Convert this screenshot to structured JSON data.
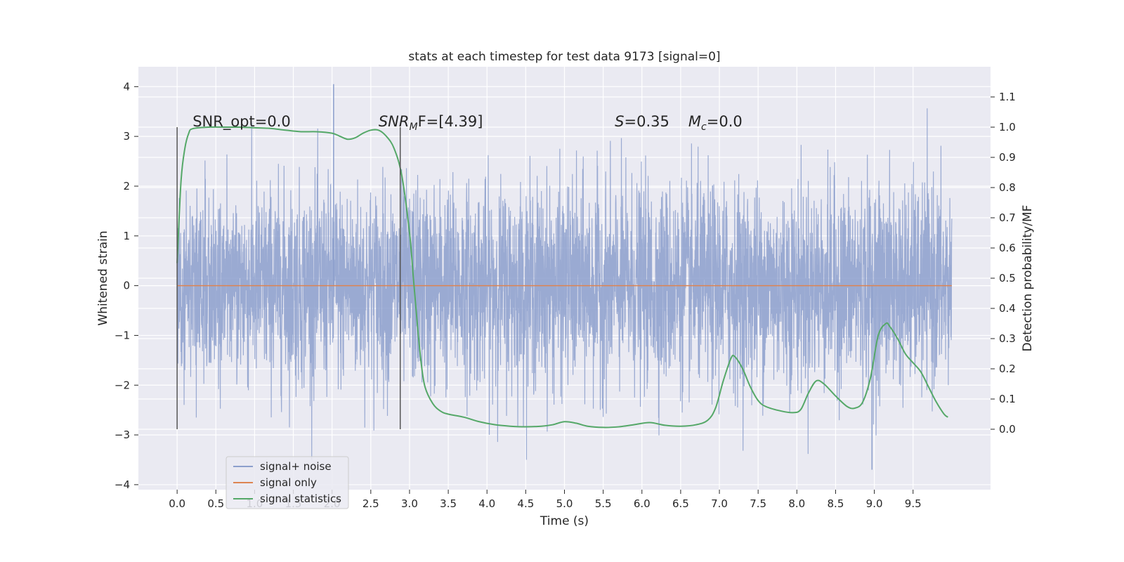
{
  "chart_data": {
    "type": "line",
    "title": "stats at each timestep for test data 9173 [signal=0]",
    "xlabel": "Time (s)",
    "ylabel_left": "Whitened strain",
    "ylabel_right": "Detection probability/MF",
    "xlim": [
      -0.5,
      10.5
    ],
    "ylim_left": [
      -4.1,
      4.4
    ],
    "ylim_right": [
      -0.2,
      1.2
    ],
    "x_ticks": [
      "0.0",
      "0.5",
      "1.0",
      "1.5",
      "2.0",
      "2.5",
      "3.0",
      "3.5",
      "4.0",
      "4.5",
      "5.0",
      "5.5",
      "6.0",
      "6.5",
      "7.0",
      "7.5",
      "8.0",
      "8.5",
      "9.0",
      "9.5"
    ],
    "y_ticks_left": [
      "−4",
      "−3",
      "−2",
      "−1",
      "0",
      "1",
      "2",
      "3",
      "4"
    ],
    "y_ticks_right": [
      "0.0",
      "0.1",
      "0.2",
      "0.3",
      "0.4",
      "0.5",
      "0.6",
      "0.7",
      "0.8",
      "0.9",
      "1.0",
      "1.1"
    ],
    "grid": true,
    "legend_position": "lower-left",
    "series": [
      {
        "name": "signal+ noise",
        "color": "#8c9fcc",
        "axis": "left",
        "description_only": true,
        "x_range": [
          0.0,
          10.0
        ],
        "typical_range": [
          -1.0,
          1.0
        ],
        "peak_max": 4.05,
        "peak_min": -3.7
      },
      {
        "name": "signal only",
        "color": "#dd8452",
        "axis": "left",
        "x": [
          0.0,
          10.0
        ],
        "y": [
          0.0,
          0.0
        ]
      },
      {
        "name": "signal statistics",
        "color": "#55a868",
        "axis": "right",
        "x": [
          0.0,
          0.05,
          0.1,
          0.15,
          0.2,
          0.4,
          0.6,
          0.8,
          1.0,
          1.2,
          1.4,
          1.6,
          1.8,
          2.0,
          2.1,
          2.2,
          2.3,
          2.4,
          2.5,
          2.6,
          2.7,
          2.8,
          2.9,
          3.0,
          3.05,
          3.1,
          3.15,
          3.2,
          3.3,
          3.4,
          3.5,
          3.7,
          3.9,
          4.1,
          4.3,
          4.5,
          4.7,
          4.85,
          5.0,
          5.15,
          5.3,
          5.5,
          5.7,
          5.9,
          6.1,
          6.3,
          6.5,
          6.7,
          6.85,
          6.95,
          7.05,
          7.15,
          7.2,
          7.3,
          7.4,
          7.5,
          7.6,
          7.8,
          7.95,
          8.05,
          8.15,
          8.25,
          8.35,
          8.5,
          8.65,
          8.75,
          8.85,
          8.95,
          9.05,
          9.15,
          9.2,
          9.3,
          9.4,
          9.5,
          9.6,
          9.7,
          9.8,
          9.9,
          9.95
        ],
        "y": [
          0.55,
          0.82,
          0.93,
          0.98,
          0.995,
          1.0,
          1.0,
          1.0,
          0.998,
          0.996,
          0.99,
          0.985,
          0.985,
          0.98,
          0.97,
          0.96,
          0.965,
          0.98,
          0.99,
          0.99,
          0.97,
          0.93,
          0.84,
          0.65,
          0.5,
          0.35,
          0.22,
          0.14,
          0.085,
          0.06,
          0.05,
          0.04,
          0.025,
          0.015,
          0.01,
          0.008,
          0.01,
          0.015,
          0.025,
          0.02,
          0.01,
          0.006,
          0.008,
          0.015,
          0.022,
          0.013,
          0.01,
          0.015,
          0.03,
          0.07,
          0.16,
          0.235,
          0.24,
          0.2,
          0.14,
          0.095,
          0.075,
          0.06,
          0.055,
          0.065,
          0.12,
          0.16,
          0.15,
          0.11,
          0.075,
          0.07,
          0.09,
          0.17,
          0.31,
          0.35,
          0.34,
          0.3,
          0.25,
          0.22,
          0.19,
          0.14,
          0.09,
          0.05,
          0.04
        ]
      }
    ],
    "annotations": [
      {
        "text": "SNR_opt=0.0",
        "x": 0.2,
        "y_right": 1.0
      },
      {
        "text_main": "SNR",
        "text_sub": "M",
        "text_rest": "F=[4.39]",
        "x": 2.6,
        "y_right": 1.0
      },
      {
        "text_main": "S",
        "text_rest": "=0.35",
        "x": 5.65,
        "y_right": 1.0
      },
      {
        "text_main": "M",
        "text_sub": "c",
        "text_rest": "=0.0",
        "x": 6.6,
        "y_right": 1.0
      }
    ],
    "vertical_lines": [
      {
        "x": 0.0,
        "y_range_right": [
          0.0,
          1.0
        ]
      },
      {
        "x": 2.88,
        "y_range_right": [
          0.0,
          1.0
        ]
      }
    ]
  }
}
